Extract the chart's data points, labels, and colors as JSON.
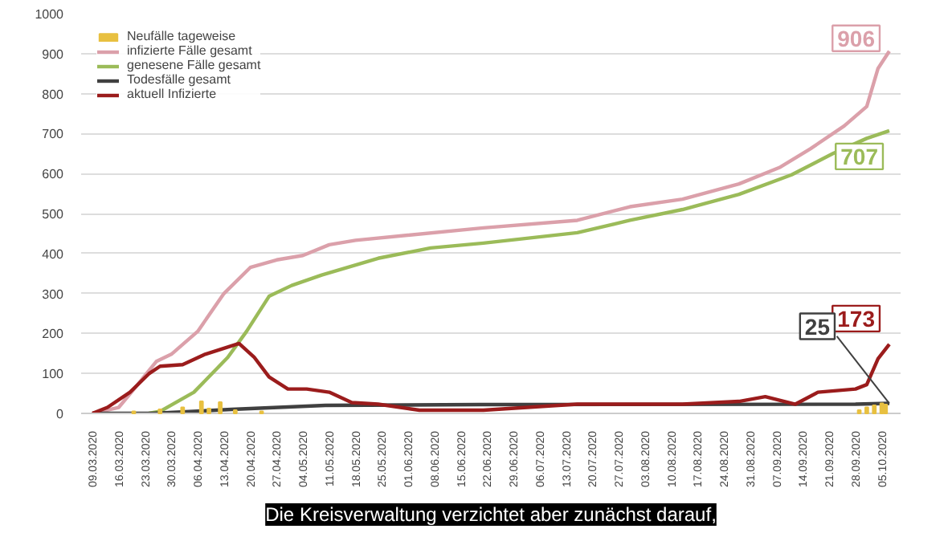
{
  "chart_data": {
    "type": "line",
    "xlim": [
      "2020-03-06",
      "2020-10-10"
    ],
    "xticks": [
      {
        "value": "2020-03-09",
        "label": "09.03.2020"
      },
      {
        "value": "2020-03-16",
        "label": "16.03.2020"
      },
      {
        "value": "2020-03-23",
        "label": "23.03.2020"
      },
      {
        "value": "2020-03-30",
        "label": "30.03.2020"
      },
      {
        "value": "2020-04-06",
        "label": "06.04.2020"
      },
      {
        "value": "2020-04-13",
        "label": "13.04.2020"
      },
      {
        "value": "2020-04-20",
        "label": "20.04.2020"
      },
      {
        "value": "2020-04-27",
        "label": "27.04.2020"
      },
      {
        "value": "2020-05-04",
        "label": "04.05.2020"
      },
      {
        "value": "2020-05-11",
        "label": "11.05.2020"
      },
      {
        "value": "2020-05-18",
        "label": "18.05.2020"
      },
      {
        "value": "2020-05-25",
        "label": "25.05.2020"
      },
      {
        "value": "2020-06-01",
        "label": "01.06.2020"
      },
      {
        "value": "2020-06-08",
        "label": "08.06.2020"
      },
      {
        "value": "2020-06-15",
        "label": "15.06.2020"
      },
      {
        "value": "2020-06-22",
        "label": "22.06.2020"
      },
      {
        "value": "2020-06-29",
        "label": "29.06.2020"
      },
      {
        "value": "2020-07-06",
        "label": "06.07.2020"
      },
      {
        "value": "2020-07-13",
        "label": "13.07.2020"
      },
      {
        "value": "2020-07-20",
        "label": "20.07.2020"
      },
      {
        "value": "2020-07-27",
        "label": "27.07.2020"
      },
      {
        "value": "2020-08-03",
        "label": "03.08.2020"
      },
      {
        "value": "2020-08-10",
        "label": "10.08.2020"
      },
      {
        "value": "2020-08-17",
        "label": "17.08.2020"
      },
      {
        "value": "2020-08-24",
        "label": "24.08.2020"
      },
      {
        "value": "2020-08-31",
        "label": "31.08.2020"
      },
      {
        "value": "2020-09-07",
        "label": "07.09.2020"
      },
      {
        "value": "2020-09-14",
        "label": "14.09.2020"
      },
      {
        "value": "2020-09-21",
        "label": "21.09.2020"
      },
      {
        "value": "2020-09-28",
        "label": "28.09.2020"
      },
      {
        "value": "2020-10-05",
        "label": "05.10.2020"
      }
    ],
    "ylim": [
      0,
      1000
    ],
    "yticks": [
      0,
      100,
      200,
      300,
      400,
      500,
      600,
      700,
      800,
      900,
      1000
    ],
    "grid": "y",
    "legend": "top left",
    "series": [
      {
        "name": "Neufälle tageweise",
        "type": "bar",
        "color": "#e8c040",
        "x": [
          "2020-03-20",
          "2020-03-27",
          "2020-04-02",
          "2020-04-07",
          "2020-04-09",
          "2020-04-12",
          "2020-04-16",
          "2020-04-23",
          "2020-09-29",
          "2020-10-01",
          "2020-10-03",
          "2020-10-05",
          "2020-10-06"
        ],
        "values": [
          5,
          10,
          15,
          30,
          12,
          28,
          8,
          5,
          8,
          15,
          20,
          25,
          22
        ]
      },
      {
        "name": "infizierte Fälle gesamt",
        "color": "#dba0aa",
        "x": [
          "2020-03-09",
          "2020-03-16",
          "2020-03-20",
          "2020-03-23",
          "2020-03-26",
          "2020-03-30",
          "2020-04-06",
          "2020-04-13",
          "2020-04-20",
          "2020-04-27",
          "2020-05-04",
          "2020-05-11",
          "2020-05-18",
          "2020-06-21",
          "2020-07-16",
          "2020-07-30",
          "2020-08-13",
          "2020-08-28",
          "2020-09-08",
          "2020-09-16",
          "2020-09-25",
          "2020-10-01",
          "2020-10-04",
          "2020-10-07"
        ],
        "values": [
          0,
          15,
          60,
          95,
          130,
          148,
          205,
          300,
          365,
          384,
          395,
          422,
          433,
          464,
          483,
          517,
          536,
          574,
          616,
          662,
          719,
          768,
          863,
          906
        ]
      },
      {
        "name": "genesene Fälle gesamt",
        "color": "#9bbb59",
        "x": [
          "2020-03-24",
          "2020-03-27",
          "2020-04-05",
          "2020-04-14",
          "2020-04-19",
          "2020-04-25",
          "2020-05-01",
          "2020-05-09",
          "2020-05-24",
          "2020-06-07",
          "2020-06-21",
          "2020-07-16",
          "2020-07-30",
          "2020-08-13",
          "2020-08-28",
          "2020-09-11",
          "2020-09-22",
          "2020-10-01",
          "2020-10-07"
        ],
        "values": [
          0,
          5,
          53,
          140,
          205,
          293,
          320,
          346,
          388,
          414,
          426,
          452,
          483,
          510,
          548,
          597,
          650,
          688,
          707
        ]
      },
      {
        "name": "Todesfälle gesamt",
        "color": "#404040",
        "x": [
          "2020-03-09",
          "2020-03-25",
          "2020-04-15",
          "2020-05-10",
          "2020-06-20",
          "2020-09-28",
          "2020-10-07"
        ],
        "values": [
          0,
          0,
          10,
          20,
          22,
          23,
          25
        ]
      },
      {
        "name": "aktuell Infizierte",
        "color": "#9b1c1c",
        "x": [
          "2020-03-09",
          "2020-03-13",
          "2020-03-19",
          "2020-03-24",
          "2020-03-27",
          "2020-04-02",
          "2020-04-08",
          "2020-04-12",
          "2020-04-17",
          "2020-04-21",
          "2020-04-25",
          "2020-04-30",
          "2020-05-05",
          "2020-05-11",
          "2020-05-17",
          "2020-05-24",
          "2020-06-04",
          "2020-06-21",
          "2020-07-16",
          "2020-08-13",
          "2020-08-28",
          "2020-09-04",
          "2020-09-12",
          "2020-09-18",
          "2020-09-28",
          "2020-10-01",
          "2020-10-04",
          "2020-10-07"
        ],
        "values": [
          0,
          15,
          53,
          99,
          118,
          122,
          148,
          160,
          175,
          141,
          91,
          61,
          61,
          53,
          27,
          23,
          8,
          8,
          23,
          23,
          30,
          42,
          23,
          53,
          61,
          72,
          137,
          173
        ]
      }
    ],
    "annotations": [
      {
        "text": "906",
        "x": "2020-10-07",
        "y": 906
      },
      {
        "text": "707",
        "x": "2020-10-07",
        "y": 707
      },
      {
        "text": "173",
        "x": "2020-10-07",
        "y": 173
      },
      {
        "text": "25",
        "x": "2020-10-07",
        "y": 25
      },
      "Die Kreisverwaltung verzichtet aber zunächst darauf,"
    ]
  }
}
